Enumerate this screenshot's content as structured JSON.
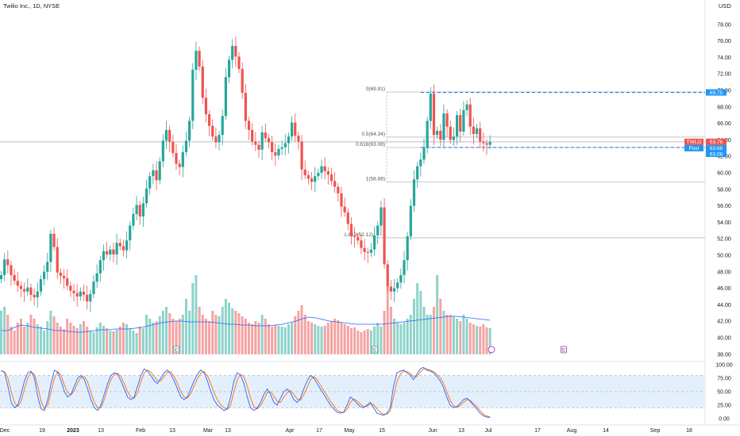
{
  "header": {
    "title": "Twilio Inc., 1D, NYSE",
    "currency": "USD"
  },
  "colors": {
    "up": "#26a69a",
    "down": "#ef5350",
    "vol_up": "#8fd3cb",
    "vol_down": "#f4a4a2",
    "vol_ma": "#2962ff",
    "fib_line": "#b2b5be",
    "range_line": "#2962ff",
    "stoch_k": "#2962ff",
    "stoch_d": "#ff6d00",
    "stoch_band": "#e3f0fc",
    "ticker_tag": "#ef5350",
    "post_tag": "#2196f3"
  },
  "chart_data": {
    "type": "candlestick",
    "title": "Twilio Inc., 1D, NYSE",
    "ylim": [
      37.5,
      80.0
    ],
    "y_ticks": [
      "38.00",
      "40.00",
      "42.00",
      "44.00",
      "46.00",
      "48.00",
      "50.00",
      "52.00",
      "54.00",
      "56.00",
      "58.00",
      "60.00",
      "62.00",
      "64.00",
      "66.00",
      "68.00",
      "70.00",
      "72.00",
      "74.00",
      "76.00",
      "78.00"
    ],
    "x_tick_labels": [
      "Dec",
      "19",
      "2023",
      "13",
      "Feb",
      "13",
      "Mar",
      "13",
      "Apr",
      "17",
      "May",
      "15",
      "Jun",
      "13",
      "Jul",
      "17",
      "Aug",
      "14",
      "Sep",
      "18"
    ],
    "closes": [
      47.6,
      49.5,
      48.8,
      47.6,
      46.9,
      46.3,
      45.9,
      45.6,
      46.1,
      45.2,
      44.9,
      45.6,
      47.1,
      48.0,
      49.2,
      52.6,
      51.0,
      47.9,
      47.5,
      47.2,
      46.3,
      45.7,
      45.4,
      45.0,
      45.6,
      45.2,
      44.4,
      45.3,
      46.8,
      47.8,
      49.4,
      50.5,
      50.1,
      50.7,
      50.1,
      51.5,
      51.1,
      50.6,
      51.8,
      53.6,
      55.0,
      56.1,
      54.7,
      56.3,
      58.1,
      59.6,
      60.3,
      59.1,
      61.4,
      63.9,
      65.2,
      63.8,
      62.4,
      61.1,
      60.7,
      62.5,
      63.9,
      66.3,
      72.5,
      74.8,
      72.9,
      69.1,
      67.1,
      65.7,
      64.4,
      63.7,
      64.6,
      66.9,
      71.6,
      73.7,
      75.4,
      74.1,
      72.6,
      69.7,
      66.3,
      65.2,
      63.8,
      63.4,
      62.8,
      64.9,
      64.2,
      63.7,
      62.5,
      62.1,
      62.9,
      63.1,
      63.6,
      64.4,
      66.1,
      64.5,
      63.8,
      60.4,
      59.7,
      59.3,
      58.9,
      59.6,
      60.0,
      60.8,
      60.2,
      59.8,
      59.0,
      58.3,
      57.5,
      55.9,
      55.2,
      53.8,
      52.3,
      52.2,
      51.8,
      50.9,
      50.4,
      50.3,
      50.7,
      52.4,
      53.6,
      55.8,
      48.9,
      46.2,
      45.6,
      46.0,
      46.7,
      47.6,
      49.4,
      52.3,
      56.0,
      59.2,
      60.8,
      61.6,
      63.1,
      66.3,
      69.6,
      64.6,
      65.1,
      64.0,
      67.2,
      65.6,
      64.0,
      64.4,
      67.0,
      65.0,
      67.6,
      68.3,
      65.6,
      64.7,
      65.4,
      63.8,
      63.6,
      63.4,
      63.76
    ],
    "volume_relative": [
      0.55,
      0.6,
      0.5,
      0.35,
      0.3,
      0.4,
      0.45,
      0.35,
      0.4,
      0.5,
      0.45,
      0.38,
      0.35,
      0.3,
      0.42,
      0.55,
      0.48,
      0.4,
      0.35,
      0.32,
      0.45,
      0.4,
      0.36,
      0.33,
      0.38,
      0.42,
      0.35,
      0.3,
      0.28,
      0.34,
      0.4,
      0.36,
      0.33,
      0.3,
      0.29,
      0.31,
      0.35,
      0.4,
      0.38,
      0.33,
      0.3,
      0.27,
      0.35,
      0.33,
      0.5,
      0.45,
      0.4,
      0.42,
      0.48,
      0.55,
      0.6,
      0.52,
      0.45,
      0.42,
      0.45,
      0.5,
      0.7,
      0.55,
      0.9,
      1.0,
      0.6,
      0.5,
      0.45,
      0.42,
      0.55,
      0.5,
      0.48,
      0.6,
      0.7,
      0.65,
      0.58,
      0.55,
      0.52,
      0.48,
      0.45,
      0.4,
      0.38,
      0.42,
      0.4,
      0.5,
      0.45,
      0.38,
      0.35,
      0.37,
      0.36,
      0.35,
      0.34,
      0.38,
      0.4,
      0.48,
      0.55,
      0.62,
      0.5,
      0.42,
      0.4,
      0.38,
      0.36,
      0.35,
      0.36,
      0.4,
      0.42,
      0.45,
      0.43,
      0.4,
      0.38,
      0.36,
      0.33,
      0.34,
      0.3,
      0.28,
      0.3,
      0.32,
      0.3,
      0.35,
      0.4,
      0.35,
      0.55,
      0.85,
      0.6,
      0.45,
      0.4,
      0.38,
      0.4,
      0.45,
      0.5,
      0.7,
      0.9,
      0.8,
      0.6,
      0.5,
      0.5,
      0.6,
      1.0,
      0.7,
      0.55,
      0.5,
      0.5,
      0.48,
      0.45,
      0.42,
      0.5,
      0.45,
      0.4,
      0.38,
      0.36,
      0.35,
      0.38,
      0.34,
      0.33,
      0.3,
      0.28
    ],
    "volume_ma_relative": [
      0.3,
      0.3,
      0.34,
      0.37,
      0.36,
      0.34,
      0.33,
      0.32,
      0.3,
      0.3,
      0.29,
      0.28,
      0.28,
      0.29,
      0.3,
      0.31,
      0.31,
      0.32,
      0.32,
      0.32,
      0.33,
      0.34,
      0.36,
      0.38,
      0.4,
      0.41,
      0.42,
      0.42,
      0.41,
      0.41,
      0.41,
      0.41,
      0.4,
      0.39,
      0.38,
      0.38,
      0.37,
      0.37,
      0.36,
      0.36,
      0.36,
      0.37,
      0.38,
      0.4,
      0.42,
      0.45,
      0.47,
      0.46,
      0.44,
      0.42,
      0.41,
      0.4,
      0.39,
      0.38,
      0.38,
      0.38,
      0.38,
      0.38,
      0.39,
      0.4,
      0.41,
      0.42,
      0.43,
      0.44,
      0.45,
      0.46,
      0.47,
      0.48,
      0.48,
      0.47,
      0.46,
      0.45,
      0.44,
      0.43
    ],
    "fibonacci_levels": [
      {
        "label": "0(69.81)",
        "value": 69.81
      },
      {
        "label": "0.5(64.34)",
        "value": 64.34
      },
      {
        "label": "0.618(63.08)",
        "value": 63.08
      },
      {
        "label": "1(58.88)",
        "value": 58.88
      },
      {
        "label": "1.618(52.12)",
        "value": 52.12
      }
    ],
    "range_box": {
      "top": 69.75,
      "bottom": 63.08
    },
    "last_price": 63.76,
    "price_tags": [
      {
        "label": "TWLO",
        "value": "63.76"
      },
      {
        "label": "Post",
        "value": "63.68"
      },
      {
        "label": "",
        "value": "69.75"
      },
      {
        "label": "",
        "value": "63.08"
      }
    ],
    "stochastic": {
      "ylim": [
        0,
        100
      ],
      "y_ticks": [
        "0.00",
        "25.00",
        "50.00",
        "75.00",
        "100.00"
      ],
      "band": [
        20,
        80
      ],
      "k": [
        90,
        85,
        60,
        30,
        20,
        25,
        45,
        70,
        85,
        88,
        75,
        40,
        18,
        15,
        35,
        65,
        90,
        86,
        70,
        50,
        40,
        45,
        60,
        75,
        80,
        72,
        55,
        35,
        20,
        15,
        25,
        45,
        65,
        80,
        85,
        82,
        70,
        55,
        40,
        35,
        40,
        60,
        80,
        92,
        88,
        80,
        70,
        65,
        75,
        85,
        90,
        82,
        70,
        55,
        40,
        35,
        40,
        55,
        70,
        82,
        90,
        85,
        70,
        50,
        35,
        25,
        20,
        15,
        18,
        40,
        70,
        85,
        80,
        65,
        40,
        20,
        15,
        20,
        30,
        45,
        55,
        45,
        30,
        25,
        38,
        50,
        55,
        48,
        35,
        30,
        38,
        55,
        70,
        80,
        75,
        65,
        55,
        45,
        35,
        25,
        18,
        12,
        10,
        12,
        25,
        40,
        35,
        28,
        22,
        20,
        25,
        30,
        20,
        10,
        8,
        6,
        10,
        20,
        60,
        85,
        88,
        90,
        85,
        80,
        72,
        82,
        92,
        95,
        90,
        88,
        85,
        78,
        70,
        58,
        40,
        25,
        20,
        22,
        28,
        35,
        38,
        32,
        25,
        18,
        10,
        5,
        3,
        2
      ],
      "d": [
        88,
        87,
        75,
        50,
        30,
        22,
        32,
        55,
        75,
        86,
        82,
        60,
        32,
        18,
        25,
        50,
        75,
        87,
        80,
        62,
        48,
        44,
        52,
        66,
        76,
        78,
        68,
        48,
        30,
        20,
        20,
        35,
        55,
        72,
        82,
        84,
        78,
        65,
        50,
        40,
        38,
        48,
        68,
        85,
        90,
        86,
        78,
        70,
        70,
        78,
        86,
        87,
        78,
        65,
        50,
        40,
        38,
        46,
        60,
        74,
        84,
        87,
        80,
        65,
        48,
        35,
        26,
        20,
        17,
        25,
        50,
        72,
        82,
        78,
        60,
        38,
        22,
        18,
        24,
        35,
        48,
        50,
        42,
        32,
        30,
        40,
        48,
        52,
        45,
        36,
        34,
        44,
        58,
        72,
        78,
        72,
        62,
        52,
        42,
        32,
        24,
        16,
        12,
        11,
        17,
        30,
        36,
        33,
        27,
        22,
        23,
        27,
        26,
        18,
        12,
        8,
        8,
        14,
        40,
        68,
        82,
        88,
        87,
        84,
        78,
        78,
        86,
        92,
        92,
        90,
        87,
        82,
        76,
        66,
        50,
        34,
        24,
        21,
        24,
        30,
        35,
        34,
        28,
        22,
        15,
        8,
        5,
        3
      ]
    }
  },
  "markers": [
    {
      "label": "E"
    },
    {
      "label": "E"
    },
    {
      "label": "E"
    }
  ]
}
